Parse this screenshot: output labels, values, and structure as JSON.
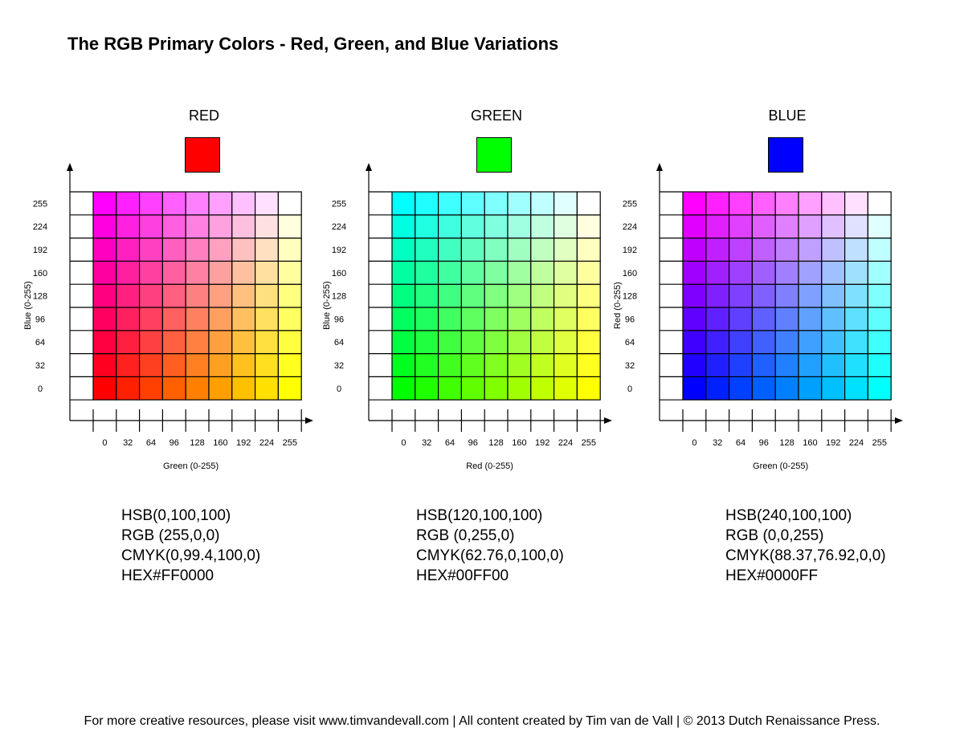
{
  "title": "The RGB Primary Colors - Red, Green, and Blue Variations",
  "footer": "For more creative resources, please visit www.timvandevall.com | All content created by Tim van de Vall | © 2013 Dutch Renaissance Press.",
  "chart_data": [
    {
      "type": "heatmap",
      "title": "RED",
      "swatch_color": "#FF0000",
      "fixed_channel": "r",
      "xlabel": "Green (0-255)",
      "ylabel": "Blue (0-255)",
      "x_channel": "g",
      "y_channel": "b",
      "x_ticks": [
        "0",
        "32",
        "64",
        "96",
        "128",
        "160",
        "192",
        "224",
        "255"
      ],
      "y_ticks": [
        "0",
        "32",
        "64",
        "96",
        "128",
        "160",
        "192",
        "224",
        "255"
      ],
      "x_values": [
        0,
        32,
        64,
        96,
        128,
        160,
        192,
        224,
        255
      ],
      "y_values": [
        0,
        32,
        64,
        96,
        128,
        160,
        192,
        224,
        255
      ],
      "info": [
        "HSB(0,100,100)",
        "RGB (255,0,0)",
        "CMYK(0,99.4,100,0)",
        "HEX#FF0000"
      ]
    },
    {
      "type": "heatmap",
      "title": "GREEN",
      "swatch_color": "#00FF00",
      "fixed_channel": "g",
      "xlabel": "Red (0-255)",
      "ylabel": "Blue (0-255)",
      "x_channel": "r",
      "y_channel": "b",
      "x_ticks": [
        "0",
        "32",
        "64",
        "96",
        "128",
        "160",
        "192",
        "224",
        "255"
      ],
      "y_ticks": [
        "0",
        "32",
        "64",
        "96",
        "128",
        "160",
        "192",
        "224",
        "255"
      ],
      "x_values": [
        0,
        32,
        64,
        96,
        128,
        160,
        192,
        224,
        255
      ],
      "y_values": [
        0,
        32,
        64,
        96,
        128,
        160,
        192,
        224,
        255
      ],
      "info": [
        "HSB(120,100,100)",
        "RGB (0,255,0)",
        "CMYK(62.76,0,100,0)",
        "HEX#00FF00"
      ]
    },
    {
      "type": "heatmap",
      "title": "BLUE",
      "swatch_color": "#0000FF",
      "fixed_channel": "b",
      "xlabel": "Green (0-255)",
      "ylabel": "Red (0-255)",
      "x_channel": "g",
      "y_channel": "r",
      "x_ticks": [
        "0",
        "32",
        "64",
        "96",
        "128",
        "160",
        "192",
        "224",
        "255"
      ],
      "y_ticks": [
        "0",
        "32",
        "64",
        "96",
        "128",
        "160",
        "192",
        "224",
        "255"
      ],
      "x_values": [
        0,
        32,
        64,
        96,
        128,
        160,
        192,
        224,
        255
      ],
      "y_values": [
        0,
        32,
        64,
        96,
        128,
        160,
        192,
        224,
        255
      ],
      "info": [
        "HSB(240,100,100)",
        "RGB (0,0,255)",
        "CMYK(88.37,76.92,0,0)",
        "HEX#0000FF"
      ]
    }
  ]
}
